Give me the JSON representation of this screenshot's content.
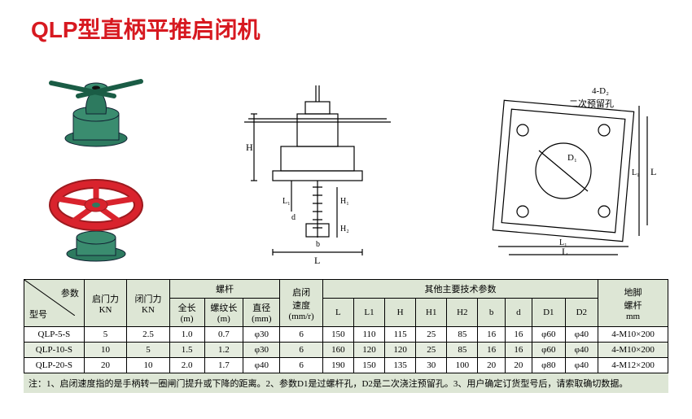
{
  "title": "QLP型直柄平推启闭机",
  "diagram_labels": {
    "main": [
      "H",
      "L1",
      "H1",
      "H2",
      "d",
      "b",
      "L"
    ],
    "top": [
      "4-D2",
      "二次预留孔",
      "D1",
      "L1",
      "L",
      "L1",
      "L"
    ]
  },
  "table": {
    "header_group_param": "参数",
    "header_group_model": "型号",
    "header_start_force": "启门力",
    "header_start_force_unit": "KN",
    "header_close_force": "闭门力",
    "header_close_force_unit": "KN",
    "header_screw": "螺杆",
    "header_speed": "启闭",
    "header_speed2": "速度",
    "header_speed_unit": "(mm/r)",
    "header_other": "其他主要技术参数",
    "header_anchor": "地脚",
    "header_anchor2": "螺杆",
    "header_anchor_unit": "mm",
    "sub_total_len": "全长",
    "sub_total_len_unit": "(m)",
    "sub_thread_len": "螺纹长",
    "sub_thread_len_unit": "(m)",
    "sub_diameter": "直径",
    "sub_diameter_unit": "(mm)",
    "sub_L": "L",
    "sub_L1": "L1",
    "sub_H": "H",
    "sub_H1": "H1",
    "sub_H2": "H2",
    "sub_b": "b",
    "sub_d": "d",
    "sub_D1": "D1",
    "sub_D2": "D2",
    "rows": [
      {
        "model": "QLP-5-S",
        "start": "5",
        "close": "2.5",
        "len": "1.0",
        "thread": "0.7",
        "dia": "φ30",
        "speed": "6",
        "L": "150",
        "L1": "110",
        "H": "115",
        "H1": "25",
        "H2": "85",
        "b": "16",
        "d": "16",
        "D1": "φ60",
        "D2": "φ40",
        "anchor": "4-M10×200",
        "hl": false
      },
      {
        "model": "QLP-10-S",
        "start": "10",
        "close": "5",
        "len": "1.5",
        "thread": "1.2",
        "dia": "φ30",
        "speed": "6",
        "L": "160",
        "L1": "120",
        "H": "120",
        "H1": "25",
        "H2": "85",
        "b": "16",
        "d": "16",
        "D1": "φ60",
        "D2": "φ40",
        "anchor": "4-M10×200",
        "hl": true
      },
      {
        "model": "QLP-20-S",
        "start": "20",
        "close": "10",
        "len": "2.0",
        "thread": "1.7",
        "dia": "φ40",
        "speed": "6",
        "L": "190",
        "L1": "150",
        "H": "135",
        "H1": "30",
        "H2": "100",
        "b": "20",
        "d": "20",
        "D1": "φ80",
        "D2": "φ40",
        "anchor": "4-M12×200",
        "hl": false
      }
    ]
  },
  "footnote": "注：1、启闭速度指的是手柄转一圈闸门提升或下降的距离。2、参数D1是过螺杆孔，D2是二次浇注预留孔。3、用户确定订货型号后，请索取确切数据。",
  "colors": {
    "title": "#d71920",
    "device_green": "#2d7a5f",
    "device_red": "#d9232d",
    "line": "#000000",
    "header_bg": "#dde6d5"
  }
}
